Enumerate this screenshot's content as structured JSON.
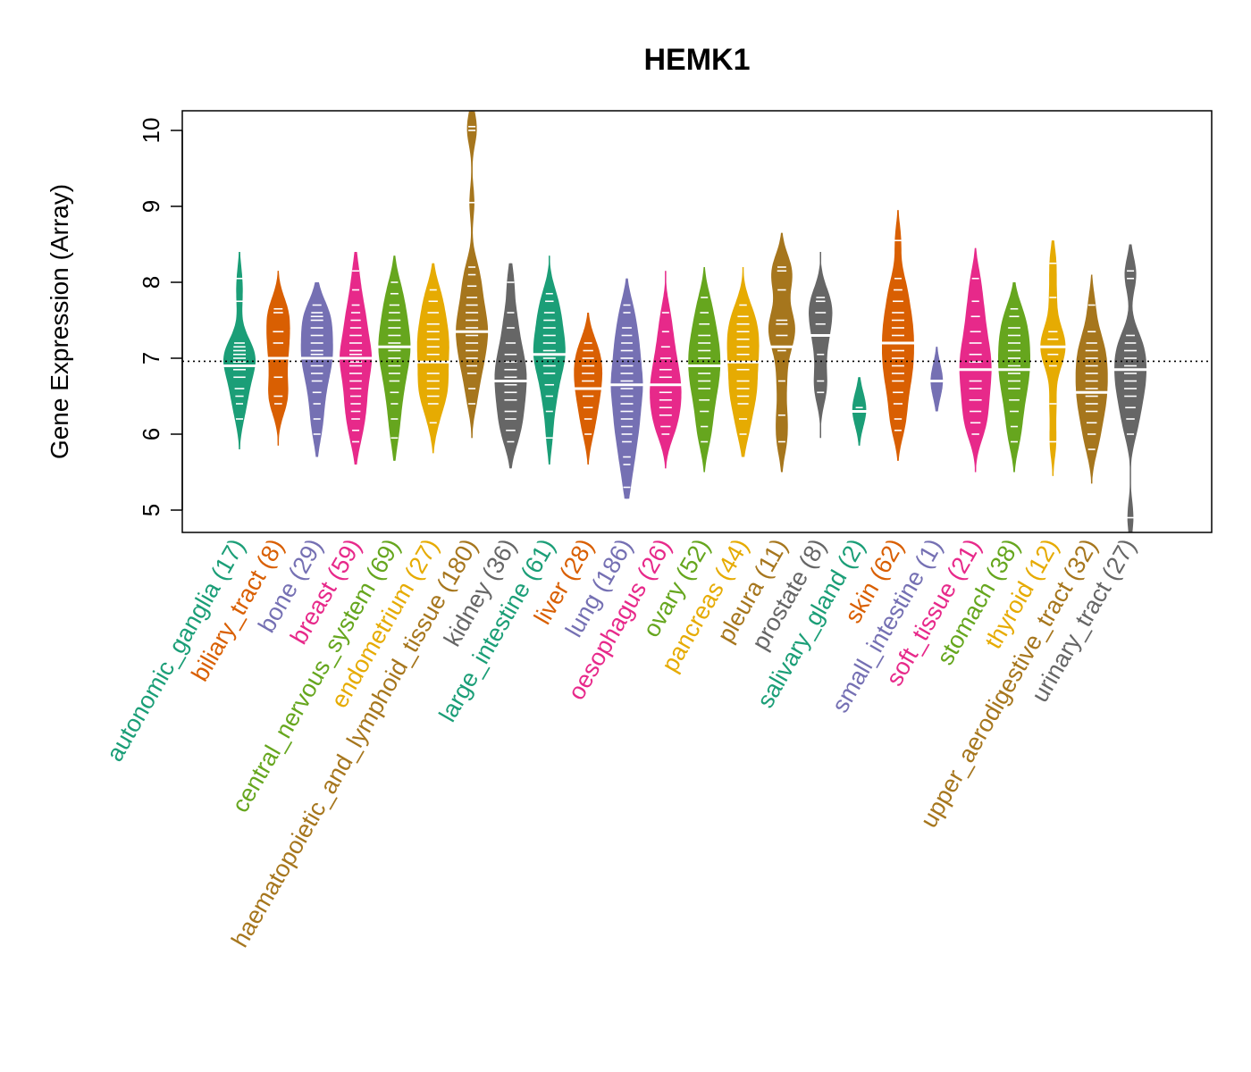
{
  "chart_data": {
    "type": "beanplot",
    "title": "HEMK1",
    "ylabel": "Gene Expression (Array)",
    "xlabel": "",
    "ylim": [
      4.7,
      10.25
    ],
    "yticks": [
      5,
      6,
      7,
      8,
      9,
      10
    ],
    "reference_line": 6.96,
    "categories": [
      {
        "name": "autonomic_ganglia",
        "n": 17,
        "color": "#1B9E77",
        "min": 5.8,
        "max": 8.4,
        "median": 6.9,
        "mode": 6.9,
        "points": [
          6.2,
          6.4,
          6.5,
          6.6,
          6.75,
          6.85,
          6.9,
          6.95,
          7.0,
          7.05,
          7.1,
          7.15,
          7.2,
          7.75,
          8.05
        ]
      },
      {
        "name": "biliary_tract",
        "n": 8,
        "color": "#D95F02",
        "min": 5.85,
        "max": 8.15,
        "median": 7.0,
        "mode": 7.0,
        "points": [
          6.4,
          6.5,
          6.75,
          7.0,
          7.2,
          7.35,
          7.6,
          7.65
        ]
      },
      {
        "name": "bone",
        "n": 29,
        "color": "#7570B3",
        "min": 5.7,
        "max": 8.0,
        "median": 7.0,
        "mode": 7.0,
        "points": [
          6.0,
          6.2,
          6.4,
          6.55,
          6.7,
          6.8,
          6.9,
          7.0,
          7.05,
          7.1,
          7.2,
          7.3,
          7.4,
          7.5,
          7.55,
          7.6,
          7.7
        ]
      },
      {
        "name": "breast",
        "n": 59,
        "color": "#E7298A",
        "min": 5.6,
        "max": 8.4,
        "median": 7.0,
        "mode": 7.0,
        "points": [
          5.9,
          6.05,
          6.2,
          6.3,
          6.4,
          6.5,
          6.6,
          6.7,
          6.8,
          6.9,
          6.95,
          7.0,
          7.05,
          7.1,
          7.2,
          7.3,
          7.4,
          7.5,
          7.6,
          7.7,
          7.9,
          8.15
        ]
      },
      {
        "name": "central_nervous_system",
        "n": 69,
        "color": "#66A61E",
        "min": 5.65,
        "max": 8.35,
        "median": 7.15,
        "mode": 7.15,
        "points": [
          5.95,
          6.2,
          6.4,
          6.55,
          6.7,
          6.8,
          6.9,
          7.0,
          7.1,
          7.15,
          7.2,
          7.3,
          7.4,
          7.5,
          7.6,
          7.7,
          7.85,
          8.0
        ]
      },
      {
        "name": "endometrium",
        "n": 27,
        "color": "#E6AB02",
        "min": 5.75,
        "max": 8.25,
        "median": 6.95,
        "mode": 6.95,
        "points": [
          6.15,
          6.4,
          6.5,
          6.6,
          6.7,
          6.8,
          6.95,
          7.05,
          7.15,
          7.25,
          7.35,
          7.45,
          7.6,
          7.75,
          7.9
        ]
      },
      {
        "name": "haematopoietic_and_lymphoid_tissue",
        "n": 180,
        "color": "#A6761D",
        "min": 5.95,
        "max": 10.25,
        "median": 7.35,
        "mode": 7.35,
        "points": [
          6.4,
          6.6,
          6.8,
          6.9,
          7.0,
          7.1,
          7.2,
          7.3,
          7.35,
          7.4,
          7.5,
          7.6,
          7.7,
          7.8,
          7.95,
          8.1,
          8.2,
          9.05,
          10.0,
          10.05
        ]
      },
      {
        "name": "kidney",
        "n": 36,
        "color": "#666666",
        "min": 5.55,
        "max": 8.25,
        "median": 6.7,
        "mode": 6.7,
        "points": [
          5.9,
          6.05,
          6.2,
          6.3,
          6.45,
          6.55,
          6.65,
          6.75,
          6.85,
          6.95,
          7.05,
          7.2,
          7.4,
          7.6,
          8.0
        ]
      },
      {
        "name": "large_intestine",
        "n": 61,
        "color": "#1B9E77",
        "min": 5.6,
        "max": 8.35,
        "median": 7.05,
        "mode": 7.05,
        "points": [
          5.95,
          6.3,
          6.5,
          6.65,
          6.8,
          6.9,
          7.0,
          7.05,
          7.1,
          7.2,
          7.3,
          7.4,
          7.5,
          7.6,
          7.75,
          7.85
        ]
      },
      {
        "name": "liver",
        "n": 28,
        "color": "#D95F02",
        "min": 5.6,
        "max": 7.6,
        "median": 6.6,
        "mode": 6.6,
        "points": [
          6.0,
          6.2,
          6.35,
          6.5,
          6.6,
          6.7,
          6.8,
          6.9,
          7.0,
          7.1,
          7.2
        ]
      },
      {
        "name": "lung",
        "n": 186,
        "color": "#7570B3",
        "min": 5.15,
        "max": 8.05,
        "median": 6.65,
        "mode": 6.65,
        "points": [
          5.3,
          5.6,
          5.7,
          5.9,
          6.0,
          6.1,
          6.2,
          6.3,
          6.4,
          6.5,
          6.6,
          6.65,
          6.7,
          6.8,
          6.9,
          7.0,
          7.1,
          7.2,
          7.3,
          7.4,
          7.6,
          7.7
        ]
      },
      {
        "name": "oesophagus",
        "n": 26,
        "color": "#E7298A",
        "min": 5.55,
        "max": 8.15,
        "median": 6.65,
        "mode": 6.65,
        "points": [
          6.0,
          6.1,
          6.25,
          6.35,
          6.45,
          6.55,
          6.65,
          6.75,
          6.85,
          7.0,
          7.15,
          7.35,
          7.6
        ]
      },
      {
        "name": "ovary",
        "n": 52,
        "color": "#66A61E",
        "min": 5.5,
        "max": 8.2,
        "median": 6.9,
        "mode": 6.9,
        "points": [
          5.9,
          6.1,
          6.3,
          6.45,
          6.6,
          6.7,
          6.8,
          6.9,
          7.0,
          7.1,
          7.2,
          7.3,
          7.45,
          7.6,
          7.8
        ]
      },
      {
        "name": "pancreas",
        "n": 44,
        "color": "#E6AB02",
        "min": 5.7,
        "max": 8.2,
        "median": 6.95,
        "mode": 6.95,
        "points": [
          6.0,
          6.2,
          6.4,
          6.5,
          6.6,
          6.7,
          6.85,
          6.95,
          7.05,
          7.15,
          7.25,
          7.35,
          7.45,
          7.55,
          7.7
        ]
      },
      {
        "name": "pleura",
        "n": 11,
        "color": "#A6761D",
        "min": 5.5,
        "max": 8.65,
        "median": 7.15,
        "mode": 7.45,
        "points": [
          5.9,
          6.25,
          6.7,
          7.1,
          7.3,
          7.45,
          7.5,
          7.9,
          8.15,
          8.2
        ]
      },
      {
        "name": "prostate",
        "n": 8,
        "color": "#666666",
        "min": 5.95,
        "max": 8.4,
        "median": 7.3,
        "mode": 7.5,
        "points": [
          6.55,
          6.7,
          7.05,
          7.3,
          7.45,
          7.6,
          7.75,
          7.8
        ]
      },
      {
        "name": "salivary_gland",
        "n": 2,
        "color": "#1B9E77",
        "min": 5.85,
        "max": 6.75,
        "median": 6.3,
        "mode": 6.3,
        "points": [
          6.3,
          6.35
        ]
      },
      {
        "name": "skin",
        "n": 62,
        "color": "#D95F02",
        "min": 5.65,
        "max": 8.95,
        "median": 7.2,
        "mode": 7.2,
        "points": [
          6.05,
          6.2,
          6.4,
          6.55,
          6.7,
          6.8,
          6.9,
          7.0,
          7.1,
          7.2,
          7.3,
          7.4,
          7.5,
          7.6,
          7.75,
          7.9,
          8.05,
          8.55
        ]
      },
      {
        "name": "small_intestine",
        "n": 1,
        "color": "#7570B3",
        "min": 6.3,
        "max": 7.15,
        "median": 6.7,
        "mode": 6.7,
        "points": [
          6.7
        ]
      },
      {
        "name": "soft_tissue",
        "n": 21,
        "color": "#E7298A",
        "min": 5.5,
        "max": 8.45,
        "median": 6.85,
        "mode": 6.85,
        "points": [
          6.0,
          6.15,
          6.3,
          6.45,
          6.6,
          6.7,
          6.85,
          6.95,
          7.05,
          7.2,
          7.35,
          7.55,
          7.75,
          8.05
        ]
      },
      {
        "name": "stomach",
        "n": 38,
        "color": "#66A61E",
        "min": 5.5,
        "max": 8.0,
        "median": 6.85,
        "mode": 6.85,
        "points": [
          5.9,
          6.1,
          6.3,
          6.45,
          6.6,
          6.7,
          6.8,
          6.9,
          7.0,
          7.1,
          7.2,
          7.3,
          7.4,
          7.55,
          7.65
        ]
      },
      {
        "name": "thyroid",
        "n": 12,
        "color": "#E6AB02",
        "min": 5.45,
        "max": 8.55,
        "median": 7.15,
        "mode": 7.15,
        "points": [
          5.9,
          6.4,
          6.9,
          7.05,
          7.15,
          7.25,
          7.35,
          7.8,
          8.25
        ]
      },
      {
        "name": "upper_aerodigestive_tract",
        "n": 32,
        "color": "#A6761D",
        "min": 5.35,
        "max": 8.1,
        "median": 6.55,
        "mode": 6.55,
        "points": [
          5.8,
          6.0,
          6.15,
          6.3,
          6.4,
          6.5,
          6.6,
          6.7,
          6.8,
          6.9,
          7.0,
          7.1,
          7.2,
          7.35,
          7.7
        ]
      },
      {
        "name": "urinary_tract",
        "n": 27,
        "color": "#666666",
        "min": 4.7,
        "max": 8.5,
        "median": 6.85,
        "mode": 6.85,
        "points": [
          4.9,
          6.0,
          6.2,
          6.35,
          6.5,
          6.6,
          6.7,
          6.8,
          6.9,
          7.0,
          7.1,
          7.2,
          7.3,
          8.05,
          8.15
        ]
      }
    ]
  }
}
